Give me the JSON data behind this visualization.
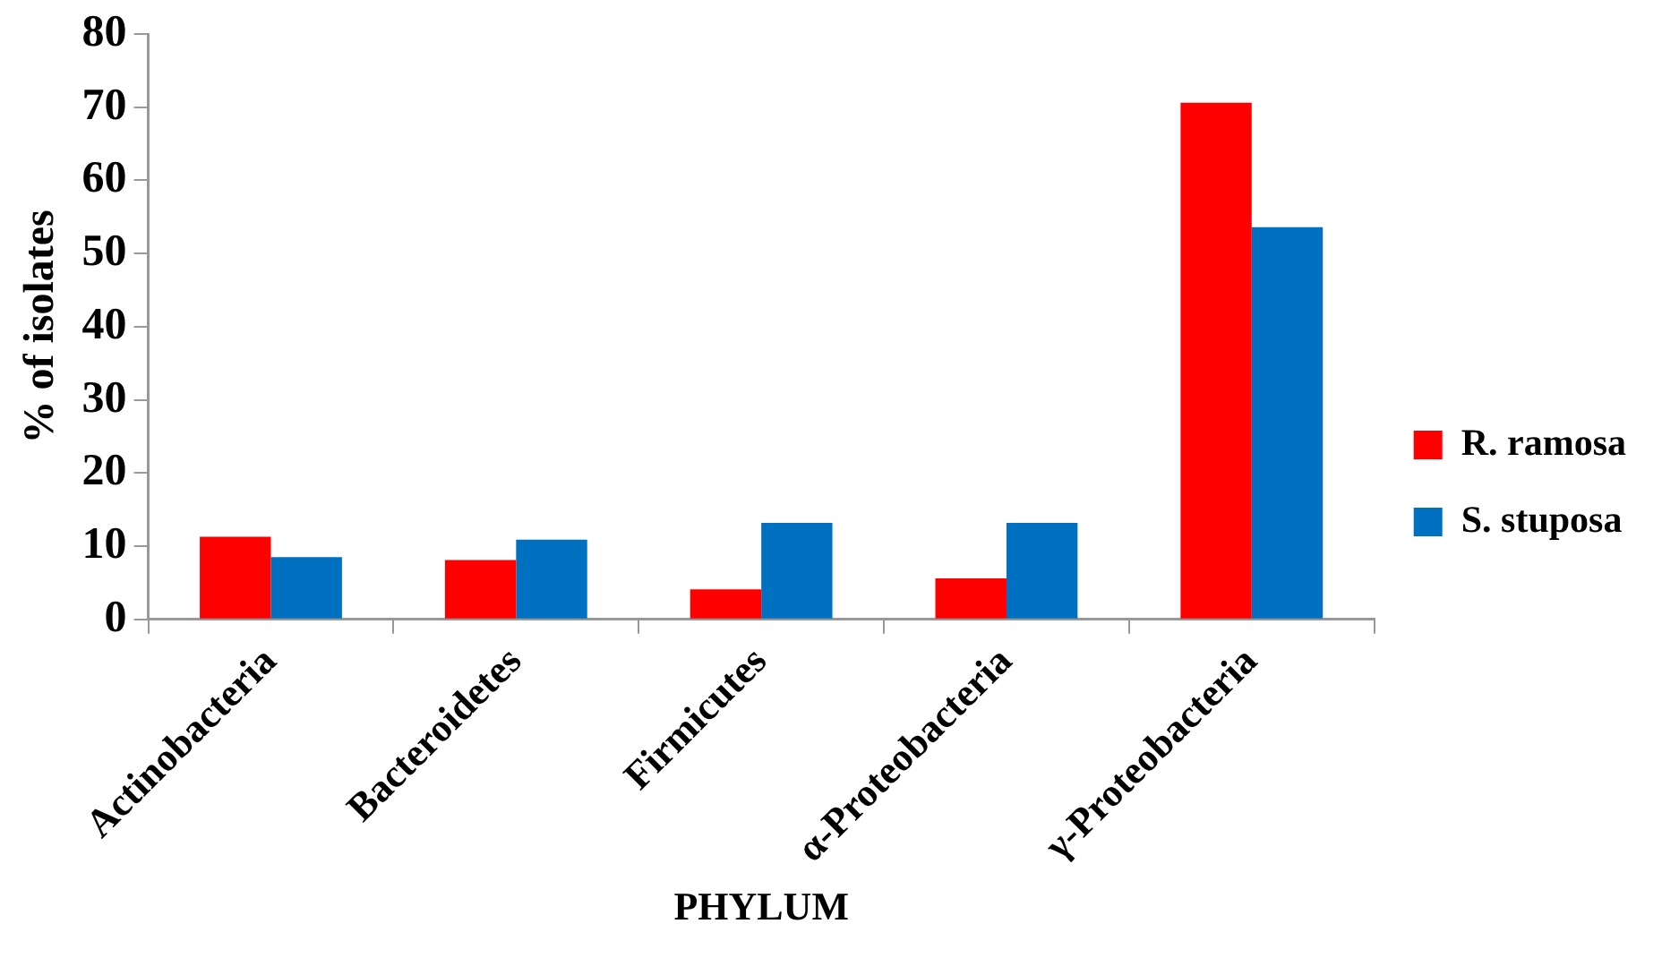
{
  "chart_data": {
    "type": "bar",
    "xlabel": "PHYLUM",
    "ylabel": "% of isolates",
    "categories": [
      "Actinobacteria",
      "Bacteroidetes",
      "Firmicutes",
      "α-Proteobacteria",
      "γ-Proteobacteria"
    ],
    "series": [
      {
        "name": "R. ramosa",
        "color": "#ff0000",
        "values": [
          11.3,
          8.1,
          4.1,
          5.6,
          70.6
        ]
      },
      {
        "name": "S. stuposa",
        "color": "#0070c0",
        "values": [
          8.5,
          10.9,
          13.2,
          13.2,
          53.6
        ]
      }
    ],
    "ylim": [
      0,
      80
    ],
    "yticks": [
      0,
      10,
      20,
      30,
      40,
      50,
      60,
      70,
      80
    ],
    "grid": false,
    "legend": "right"
  }
}
